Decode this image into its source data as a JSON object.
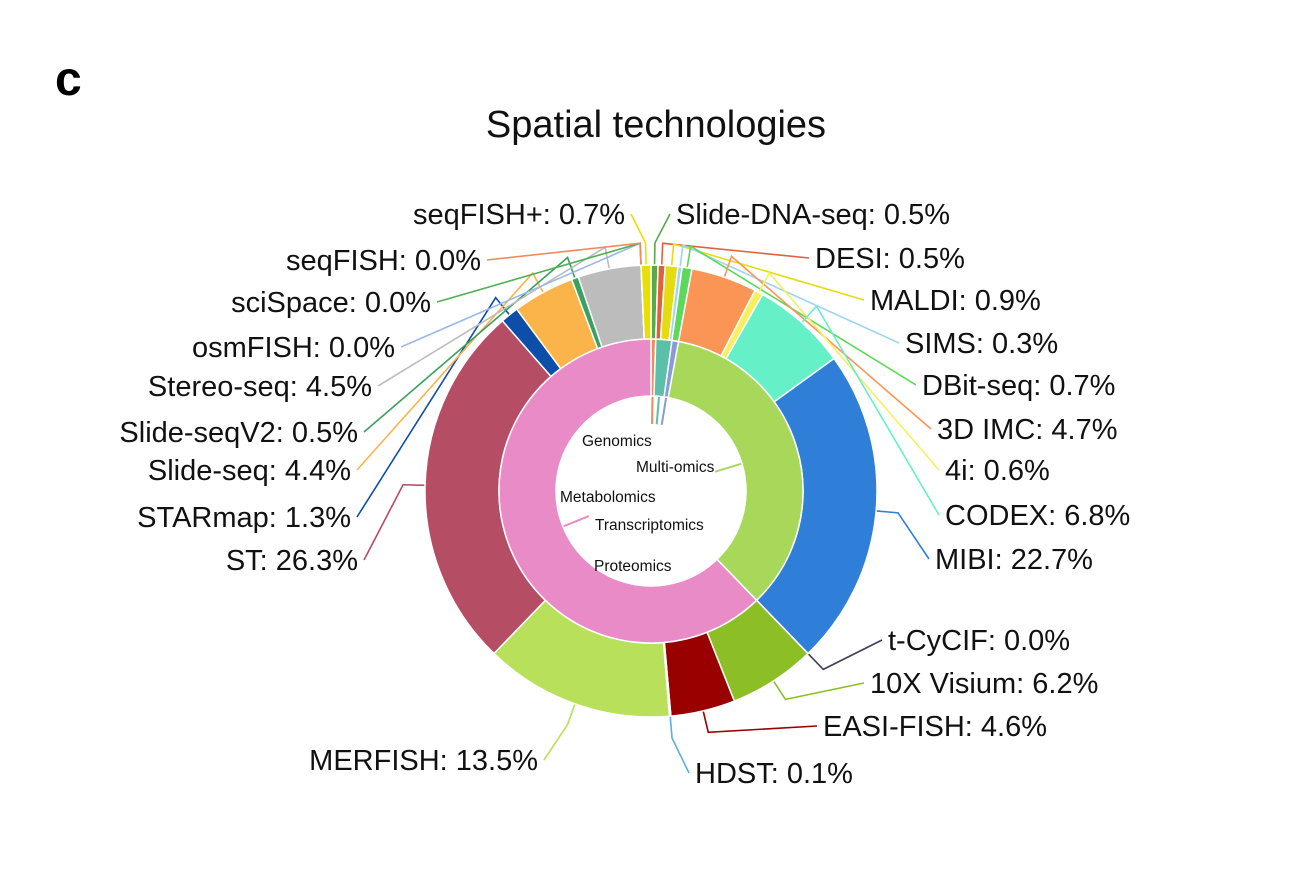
{
  "panel_label": "c",
  "chart_data": {
    "type": "pie",
    "subtype": "sunburst-donut",
    "title": "Spatial technologies",
    "unit": "%",
    "inner": [
      {
        "name": "Genomics",
        "color": "#f08a5d"
      },
      {
        "name": "Metabolomics",
        "color": "#5bbfaa"
      },
      {
        "name": "Multi-omics",
        "color": "#8a9ad8"
      },
      {
        "name": "Proteomics",
        "color": "#a8d85a"
      },
      {
        "name": "Transcriptomics",
        "color": "#e98bc7"
      }
    ],
    "outer": [
      {
        "name": "Slide-DNA-seq",
        "value": 0.5,
        "label": "Slide-DNA-seq: 0.5%",
        "group": "Genomics",
        "color": "#5aa84c"
      },
      {
        "name": "DESI",
        "value": 0.5,
        "label": "DESI: 0.5%",
        "group": "Metabolomics",
        "color": "#e0603a"
      },
      {
        "name": "MALDI",
        "value": 0.9,
        "label": "MALDI: 0.9%",
        "group": "Metabolomics",
        "color": "#e4dc10"
      },
      {
        "name": "SIMS",
        "value": 0.3,
        "label": "SIMS: 0.3%",
        "group": "Metabolomics",
        "color": "#9fd4f0"
      },
      {
        "name": "DBit-seq",
        "value": 0.7,
        "label": "DBit-seq: 0.7%",
        "group": "Multi-omics",
        "color": "#5cd85c"
      },
      {
        "name": "3D IMC",
        "value": 4.7,
        "label": "3D IMC: 4.7%",
        "group": "Proteomics",
        "color": "#fb9555"
      },
      {
        "name": "4i",
        "value": 0.6,
        "label": "4i: 0.6%",
        "group": "Proteomics",
        "color": "#f5f060"
      },
      {
        "name": "CODEX",
        "value": 6.8,
        "label": "CODEX: 6.8%",
        "group": "Proteomics",
        "color": "#66f0c8"
      },
      {
        "name": "MIBI",
        "value": 22.7,
        "label": "MIBI: 22.7%",
        "group": "Proteomics",
        "color": "#2f7fd8"
      },
      {
        "name": "t-CyCIF",
        "value": 0.0,
        "label": "t-CyCIF: 0.0%",
        "group": "Proteomics",
        "color": "#3a4050"
      },
      {
        "name": "10X Visium",
        "value": 6.2,
        "label": "10X Visium: 6.2%",
        "group": "Transcriptomics",
        "color": "#8cbf26"
      },
      {
        "name": "EASI-FISH",
        "value": 4.6,
        "label": "EASI-FISH: 4.6%",
        "group": "Transcriptomics",
        "color": "#990000"
      },
      {
        "name": "HDST",
        "value": 0.1,
        "label": "HDST: 0.1%",
        "group": "Transcriptomics",
        "color": "#5ab0e0"
      },
      {
        "name": "MERFISH",
        "value": 13.5,
        "label": "MERFISH: 13.5%",
        "group": "Transcriptomics",
        "color": "#b8e05a"
      },
      {
        "name": "ST",
        "value": 26.3,
        "label": "ST: 26.3%",
        "group": "Transcriptomics",
        "color": "#b54d64"
      },
      {
        "name": "STARmap",
        "value": 1.3,
        "label": "STARmap: 1.3%",
        "group": "Transcriptomics",
        "color": "#0d4fa8"
      },
      {
        "name": "Slide-seq",
        "value": 4.4,
        "label": "Slide-seq: 4.4%",
        "group": "Transcriptomics",
        "color": "#fbb44a"
      },
      {
        "name": "Slide-seqV2",
        "value": 0.5,
        "label": "Slide-seqV2: 0.5%",
        "group": "Transcriptomics",
        "color": "#3aa060"
      },
      {
        "name": "Stereo-seq",
        "value": 4.5,
        "label": "Stereo-seq: 4.5%",
        "group": "Transcriptomics",
        "color": "#bcbcbc"
      },
      {
        "name": "osmFISH",
        "value": 0.0,
        "label": "osmFISH: 0.0%",
        "group": "Transcriptomics",
        "color": "#9ab8e8"
      },
      {
        "name": "sciSpace",
        "value": 0.0,
        "label": "sciSpace: 0.0%",
        "group": "Transcriptomics",
        "color": "#4cb050"
      },
      {
        "name": "seqFISH",
        "value": 0.0,
        "label": "seqFISH: 0.0%",
        "group": "Transcriptomics",
        "color": "#f08a5d"
      },
      {
        "name": "seqFISH+",
        "value": 0.7,
        "label": "seqFISH+: 0.7%",
        "group": "Transcriptomics",
        "color": "#e8e000"
      }
    ]
  }
}
